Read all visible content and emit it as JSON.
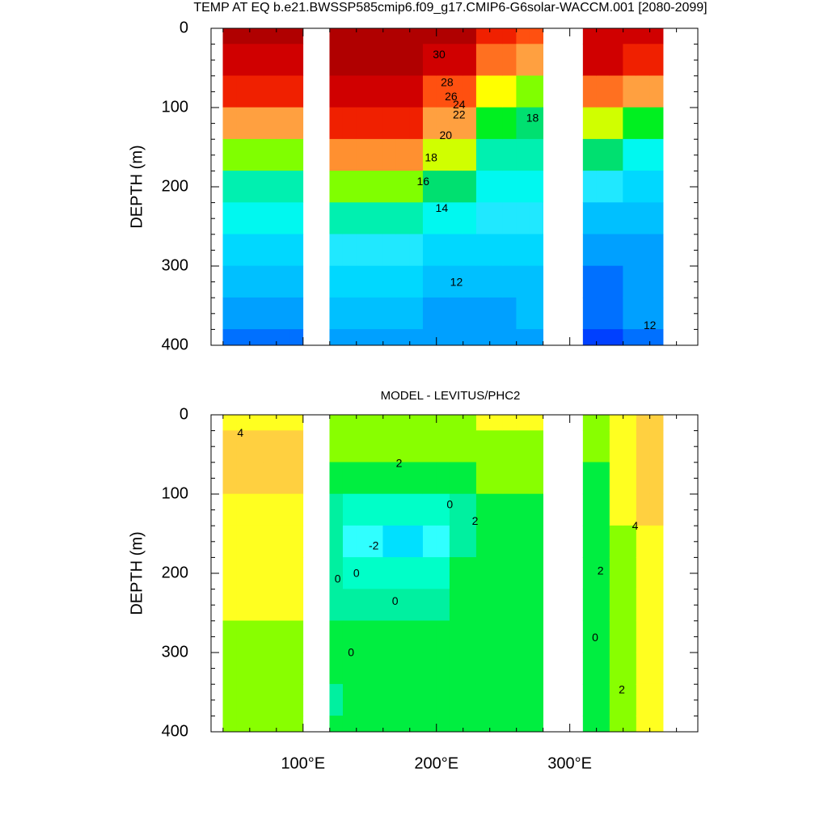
{
  "chart_data": [
    {
      "type": "contour",
      "title": "TEMP AT EQ b.e21.BWSSP585cmip6.f09_g17.CMIP6-G6solar-WACCM.001 [2080-2099]",
      "ylabel": "DEPTH (m)",
      "xlim": [
        31,
        396
      ],
      "ylim": [
        400,
        0
      ],
      "xticks": [
        100,
        200,
        300
      ],
      "xminor": [
        40,
        60,
        80,
        120,
        140,
        160,
        180,
        220,
        240,
        260,
        280,
        320,
        340,
        360,
        380
      ],
      "yticks": [
        0,
        100,
        200,
        300,
        400
      ],
      "yminor": [
        20,
        40,
        60,
        80,
        120,
        140,
        160,
        180,
        220,
        240,
        260,
        280,
        320,
        340,
        360,
        380
      ],
      "levels": [
        10,
        11,
        12,
        13,
        14,
        15,
        16,
        17,
        18,
        19,
        20,
        21,
        22,
        23,
        24,
        25,
        26,
        27,
        28,
        29,
        30
      ],
      "colors": [
        "#0040ff",
        "#0070ff",
        "#00a0ff",
        "#00c0ff",
        "#00d8ff",
        "#20e8ff",
        "#00f8f0",
        "#00f0b0",
        "#00e070",
        "#00f020",
        "#80ff00",
        "#d0ff00",
        "#ffff00",
        "#ffe000",
        "#ffc020",
        "#ffa040",
        "#ff9030",
        "#ff7020",
        "#ff5010",
        "#f02000",
        "#d00000",
        "#b00000"
      ],
      "x": [
        45,
        55,
        65,
        75,
        85,
        95,
        105,
        115,
        125,
        135,
        145,
        155,
        165,
        175,
        185,
        195,
        205,
        215,
        225,
        235,
        245,
        255,
        265,
        275,
        285,
        295,
        305,
        315,
        325,
        335,
        345,
        355,
        365
      ],
      "y": [
        0,
        40,
        80,
        120,
        160,
        200,
        240,
        280,
        320,
        360,
        400
      ],
      "z": [
        [
          30,
          29.8,
          28,
          24,
          19,
          16.5,
          15,
          13.5,
          12.5,
          11.5,
          10.8
        ],
        [
          30,
          29.8,
          28,
          24,
          19,
          16.5,
          15,
          13.5,
          12.5,
          11.5,
          10.8
        ],
        [
          30,
          29.8,
          28,
          24,
          19,
          16.5,
          15,
          13.5,
          12.5,
          11.5,
          10.8
        ],
        [
          30,
          29.8,
          28,
          24,
          19,
          16.5,
          15,
          13.5,
          12.5,
          11.5,
          10.8
        ],
        [
          30,
          29.8,
          28,
          24,
          19,
          16.5,
          15,
          13.5,
          12.5,
          11.5,
          10.8
        ],
        [
          30,
          29.8,
          28,
          24,
          19,
          16.5,
          15,
          13.5,
          12.5,
          11.5,
          10.8
        ],
        null,
        null,
        [
          30.5,
          30.3,
          29.5,
          28,
          25,
          19.5,
          16.5,
          14.5,
          13,
          12,
          11.3
        ],
        [
          30.5,
          30.3,
          29.5,
          28,
          25,
          19.5,
          16.5,
          14.5,
          13,
          12,
          11.3
        ],
        [
          30.5,
          30.3,
          29.5,
          28,
          25,
          19.5,
          16.5,
          14.5,
          13,
          12,
          11.3
        ],
        [
          30.5,
          30.3,
          29.5,
          28,
          25,
          19.5,
          16.5,
          14.5,
          13,
          12,
          11.3
        ],
        [
          30.5,
          30.3,
          29.5,
          28,
          25,
          19.5,
          16.5,
          14.5,
          13,
          12,
          11.3
        ],
        [
          30.5,
          30.3,
          29.5,
          28,
          25,
          19.5,
          16.5,
          14.5,
          13,
          12,
          11.3
        ],
        [
          30.5,
          30.3,
          29.5,
          28,
          25,
          19.5,
          16.5,
          14.5,
          13,
          12,
          11.3
        ],
        [
          30,
          29.5,
          27.5,
          24,
          20,
          17,
          15,
          13.5,
          12.3,
          11.8,
          11.2
        ],
        [
          30,
          29.5,
          27.5,
          24,
          20,
          17,
          15,
          13.5,
          12.3,
          11.8,
          11.2
        ],
        [
          30,
          29.5,
          27.5,
          24,
          20,
          17,
          15,
          13.5,
          12.3,
          11.8,
          11.2
        ],
        [
          30,
          29.5,
          27.5,
          24,
          20,
          17,
          15,
          13.5,
          12.3,
          11.8,
          11.2
        ],
        [
          28.5,
          26,
          21,
          18,
          16.5,
          15.5,
          14,
          13,
          12.3,
          11.8,
          11.5
        ],
        [
          28.5,
          26,
          21,
          18,
          16.5,
          15.5,
          14,
          13,
          12.3,
          11.8,
          11.5
        ],
        [
          28.5,
          26,
          21,
          18,
          16.5,
          15.5,
          14,
          13,
          12.3,
          11.8,
          11.5
        ],
        [
          27,
          24,
          19,
          17.5,
          16.8,
          15.5,
          14,
          13,
          12.5,
          12,
          11.8
        ],
        [
          27,
          24,
          19,
          17.5,
          16.8,
          15.5,
          14,
          13,
          12.5,
          12,
          11.8
        ],
        null,
        null,
        null,
        [
          29.5,
          29,
          26,
          20,
          17,
          14,
          12,
          11,
          10.5,
          10,
          9.5
        ],
        [
          29.5,
          29,
          26,
          20,
          17,
          14,
          12,
          11,
          10.5,
          10,
          9.5
        ],
        [
          29.5,
          29,
          26,
          20,
          17,
          14,
          12,
          11,
          10.5,
          10,
          9.5
        ],
        [
          29,
          28,
          24,
          18,
          15,
          13.5,
          12.5,
          11.8,
          11.3,
          11,
          10.6
        ],
        [
          29,
          28,
          24,
          18,
          15,
          13.5,
          12.5,
          11.8,
          11.3,
          11,
          10.6
        ],
        [
          29,
          28,
          24,
          18,
          15,
          13.5,
          12.5,
          11.8,
          11.3,
          11,
          10.6
        ]
      ],
      "contour_labels": [
        {
          "x": 202,
          "y": 34,
          "value": 30
        },
        {
          "x": 208,
          "y": 69,
          "value": 28
        },
        {
          "x": 211,
          "y": 87,
          "value": 26
        },
        {
          "x": 217,
          "y": 97,
          "value": 24
        },
        {
          "x": 217,
          "y": 110,
          "value": 22
        },
        {
          "x": 207,
          "y": 136,
          "value": 20
        },
        {
          "x": 196,
          "y": 164,
          "value": 18
        },
        {
          "x": 190,
          "y": 194,
          "value": 16
        },
        {
          "x": 204,
          "y": 228,
          "value": 14
        },
        {
          "x": 215,
          "y": 321,
          "value": 12
        },
        {
          "x": 272,
          "y": 114,
          "value": 18
        },
        {
          "x": 360,
          "y": 376,
          "value": 12
        }
      ]
    },
    {
      "type": "contour",
      "title": "MODEL - LEVITUS/PHC2",
      "ylabel": "DEPTH (m)",
      "xlim": [
        31,
        396
      ],
      "ylim": [
        400,
        0
      ],
      "xticks": [
        {
          "value": 100,
          "label": "100°E"
        },
        {
          "value": 200,
          "label": "200°E"
        },
        {
          "value": 300,
          "label": "300°E"
        }
      ],
      "xminor": [
        40,
        60,
        80,
        120,
        140,
        160,
        180,
        220,
        240,
        260,
        280,
        320,
        340,
        360,
        380
      ],
      "yticks": [
        0,
        100,
        200,
        300,
        400
      ],
      "yminor": [
        20,
        40,
        60,
        80,
        120,
        140,
        160,
        180,
        220,
        240,
        260,
        280,
        320,
        340,
        360,
        380
      ],
      "levels": [
        -3,
        -2,
        -1,
        0,
        1,
        2,
        3,
        4
      ],
      "colors": [
        "#00e0ff",
        "#30ffff",
        "#00ffc8",
        "#00f0a0",
        "#00ee40",
        "#88ff00",
        "#ffff20",
        "#ffd040",
        "#ffa030"
      ],
      "x": [
        45,
        55,
        65,
        75,
        85,
        95,
        105,
        115,
        125,
        135,
        145,
        155,
        165,
        175,
        185,
        195,
        205,
        215,
        225,
        235,
        245,
        255,
        265,
        275,
        285,
        295,
        305,
        315,
        325,
        335,
        345,
        355,
        365
      ],
      "y": [
        0,
        40,
        80,
        120,
        160,
        200,
        240,
        280,
        320,
        360,
        400
      ],
      "z": [
        [
          2.5,
          3.2,
          3.5,
          2.6,
          2.4,
          2.3,
          2.2,
          1.5,
          1.5,
          1.6,
          1.4
        ],
        [
          2.5,
          3.2,
          3.5,
          2.6,
          2.4,
          2.3,
          2.2,
          1.5,
          1.5,
          1.6,
          1.4
        ],
        [
          2.5,
          3.2,
          3.5,
          2.6,
          2.4,
          2.3,
          2.2,
          1.5,
          1.5,
          1.6,
          1.4
        ],
        [
          2.5,
          3.2,
          3.5,
          2.6,
          2.4,
          2.3,
          2.2,
          1.5,
          1.5,
          1.6,
          1.4
        ],
        [
          2.5,
          3.2,
          3.5,
          2.6,
          2.4,
          2.3,
          2.2,
          1.5,
          1.5,
          1.6,
          1.4
        ],
        [
          2.5,
          3.2,
          3.5,
          2.6,
          2.4,
          2.3,
          2.2,
          1.5,
          1.5,
          1.6,
          1.4
        ],
        null,
        null,
        [
          1.5,
          1.2,
          0.8,
          -0.5,
          -1,
          -0.5,
          -0.2,
          0.3,
          0.2,
          -0.2,
          0.5
        ],
        [
          1.5,
          1.2,
          0.5,
          -1.5,
          -2.5,
          -1.5,
          -0.3,
          0.5,
          0.6,
          0.6,
          0.6
        ],
        [
          1.5,
          1.2,
          0.5,
          -1.5,
          -2.5,
          -1.5,
          -0.3,
          0.5,
          0.6,
          0.6,
          0.6
        ],
        [
          1.5,
          1.2,
          0.5,
          -1.5,
          -2.5,
          -1.5,
          -0.3,
          0.5,
          0.6,
          0.6,
          0.6
        ],
        [
          1.5,
          1.2,
          0.3,
          -2,
          -3.2,
          -2,
          -0.5,
          0.5,
          0.6,
          0.6,
          0.6
        ],
        [
          1.5,
          1.2,
          0.3,
          -2,
          -3.2,
          -2,
          -0.5,
          0.5,
          0.6,
          0.6,
          0.6
        ],
        [
          1.5,
          1.2,
          0.3,
          -2,
          -3.2,
          -2,
          -0.5,
          0.5,
          0.6,
          0.6,
          0.6
        ],
        [
          1.5,
          1.2,
          0.5,
          -1.5,
          -2.5,
          -1.5,
          -0.3,
          0.5,
          0.6,
          0.6,
          0.6
        ],
        [
          1.5,
          1.2,
          0.5,
          -1.5,
          -2.5,
          -1.5,
          -0.3,
          0.5,
          0.6,
          0.6,
          0.6
        ],
        [
          1.5,
          1.3,
          0.5,
          -0.5,
          -0.8,
          0.3,
          0.6,
          0.6,
          0.7,
          0.7,
          0.7
        ],
        [
          1.5,
          1.3,
          0.5,
          -0.5,
          -0.8,
          0.3,
          0.6,
          0.6,
          0.7,
          0.7,
          0.7
        ],
        [
          2.2,
          1.5,
          1,
          0.6,
          0.7,
          0.7,
          0.8,
          0.8,
          0.8,
          0.7,
          0.7
        ],
        [
          2.2,
          1.5,
          1,
          0.6,
          0.7,
          0.7,
          0.8,
          0.8,
          0.8,
          0.7,
          0.7
        ],
        [
          2.2,
          1.5,
          1,
          0.6,
          0.7,
          0.7,
          0.8,
          0.8,
          0.8,
          0.7,
          0.7
        ],
        [
          2.2,
          1.5,
          1,
          0.6,
          0.7,
          0.7,
          0.8,
          0.8,
          0.8,
          0.7,
          0.7
        ],
        [
          2.2,
          1.5,
          1,
          0.6,
          0.7,
          0.7,
          0.8,
          0.8,
          0.8,
          0.7,
          0.7
        ],
        null,
        null,
        null,
        [
          1.5,
          1,
          0.5,
          0.3,
          0.4,
          0.3,
          0.2,
          0.5,
          0.6,
          0.7,
          0.8
        ],
        [
          1.5,
          1,
          0.5,
          0.3,
          0.4,
          0.3,
          0.2,
          0.5,
          0.6,
          0.7,
          0.8
        ],
        [
          2.5,
          2.8,
          2.5,
          2,
          1.8,
          1.5,
          1.3,
          1.2,
          1.4,
          1.6,
          1.7
        ],
        [
          2.5,
          2.8,
          2.5,
          2,
          1.8,
          1.5,
          1.3,
          1.2,
          1.4,
          1.6,
          1.7
        ],
        [
          3,
          3.8,
          3.5,
          3.2,
          2.8,
          2.4,
          2.2,
          2,
          2,
          2.1,
          2.2
        ],
        [
          3,
          3.8,
          3.5,
          3.2,
          2.8,
          2.4,
          2.2,
          2,
          2,
          2.1,
          2.2
        ]
      ],
      "contour_labels": [
        {
          "x": 53,
          "y": 24,
          "value": 4
        },
        {
          "x": 172,
          "y": 62,
          "value": 2
        },
        {
          "x": 210,
          "y": 114,
          "value": 0
        },
        {
          "x": 229,
          "y": 135,
          "value": 2
        },
        {
          "x": 153,
          "y": 166,
          "value": -2
        },
        {
          "x": 126,
          "y": 208,
          "value": 0
        },
        {
          "x": 140,
          "y": 201,
          "value": 0
        },
        {
          "x": 169,
          "y": 236,
          "value": 0
        },
        {
          "x": 136,
          "y": 301,
          "value": 0
        },
        {
          "x": 323,
          "y": 198,
          "value": 2
        },
        {
          "x": 349,
          "y": 141,
          "value": 4
        },
        {
          "x": 319,
          "y": 282,
          "value": 0
        },
        {
          "x": 339,
          "y": 348,
          "value": 2
        }
      ]
    }
  ]
}
